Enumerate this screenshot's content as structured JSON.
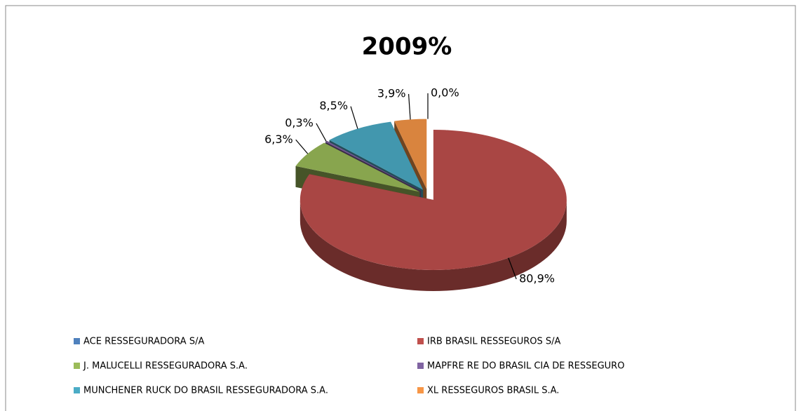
{
  "chart_data": {
    "type": "pie",
    "title": "2009%",
    "categories": [
      "ACE RESSEGURADORA S/A",
      "IRB BRASIL RESSEGUROS S/A",
      "J. MALUCELLI RESSEGURADORA S.A.",
      "MAPFRE RE DO BRASIL CIA DE RESSEGURO",
      "MUNCHENER RUCK DO BRASIL RESSEGURADORA S.A.",
      "XL RESSEGUROS BRASIL S.A."
    ],
    "values": [
      0,
      80.9,
      6.3,
      0.3,
      8.5,
      3.9
    ],
    "value_labels": [
      "0,0%",
      "80,9%",
      "6,3%",
      "0,3%",
      "8,5%",
      "3,9%"
    ],
    "colors": [
      "#4f81bd",
      "#c0504d",
      "#9bbb59",
      "#8064a2",
      "#4bacc6",
      "#f79646"
    ]
  }
}
